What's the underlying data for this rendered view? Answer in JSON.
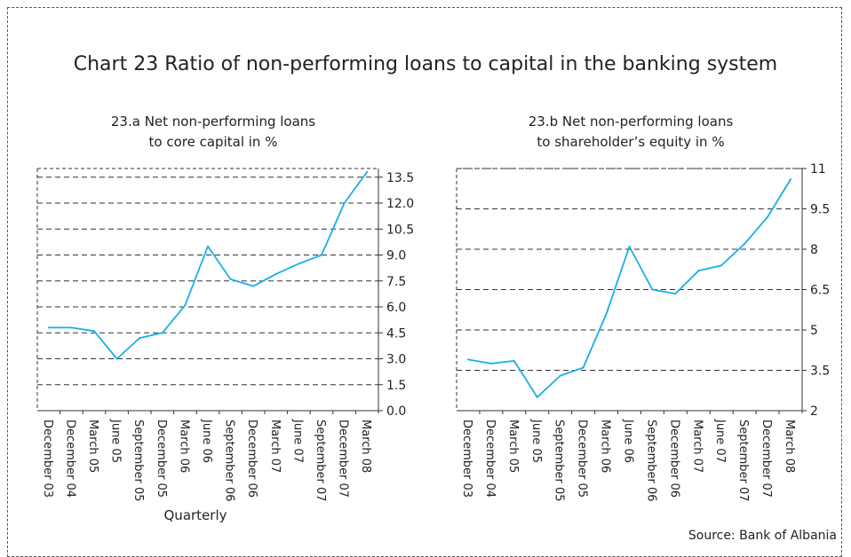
{
  "title": "Chart 23 Ratio of non-performing loans to capital in the banking system",
  "source": "Source: Bank of Albania",
  "chart_data": [
    {
      "type": "line",
      "title_line1": "23.a Net non-performing loans",
      "title_line2": "to core capital in %",
      "xlabel": "Quarterly",
      "x": [
        "December 03",
        "December 04",
        "March 05",
        "June 05",
        "September 05",
        "December 05",
        "March 06",
        "June 06",
        "September 06",
        "December 06",
        "March 07",
        "June 07",
        "September 07",
        "December 07",
        "March 08"
      ],
      "series": [
        {
          "values": [
            4.8,
            4.8,
            4.6,
            3.0,
            4.2,
            4.5,
            6.1,
            9.5,
            7.6,
            7.2,
            7.9,
            8.5,
            9.0,
            12.0,
            13.8
          ]
        }
      ],
      "yticks": [
        "13.5",
        "12.0",
        "10.5",
        "9.0",
        "7.5",
        "6.0",
        "4.5",
        "3.0",
        "1.5",
        "0.0"
      ],
      "ylim": [
        0,
        14
      ],
      "color": "#1aaee5"
    },
    {
      "type": "line",
      "title_line1": "23.b Net non-performing loans",
      "title_line2": "to shareholder’s equity in %",
      "x": [
        "December 03",
        "December 04",
        "March 05",
        "June 05",
        "September 05",
        "December 05",
        "March 06",
        "June 06",
        "September 06",
        "December 06",
        "March 07",
        "June 07",
        "September 07",
        "December 07",
        "March 08"
      ],
      "series": [
        {
          "values": [
            3.9,
            3.75,
            3.85,
            2.5,
            3.3,
            3.6,
            5.6,
            8.1,
            6.5,
            6.35,
            7.2,
            7.4,
            8.2,
            9.2,
            10.6
          ]
        }
      ],
      "yticks": [
        "11",
        "9.5",
        "8",
        "6.5",
        "5",
        "3.5",
        "2"
      ],
      "ylim": [
        2,
        11
      ],
      "color": "#1aaee5"
    }
  ]
}
